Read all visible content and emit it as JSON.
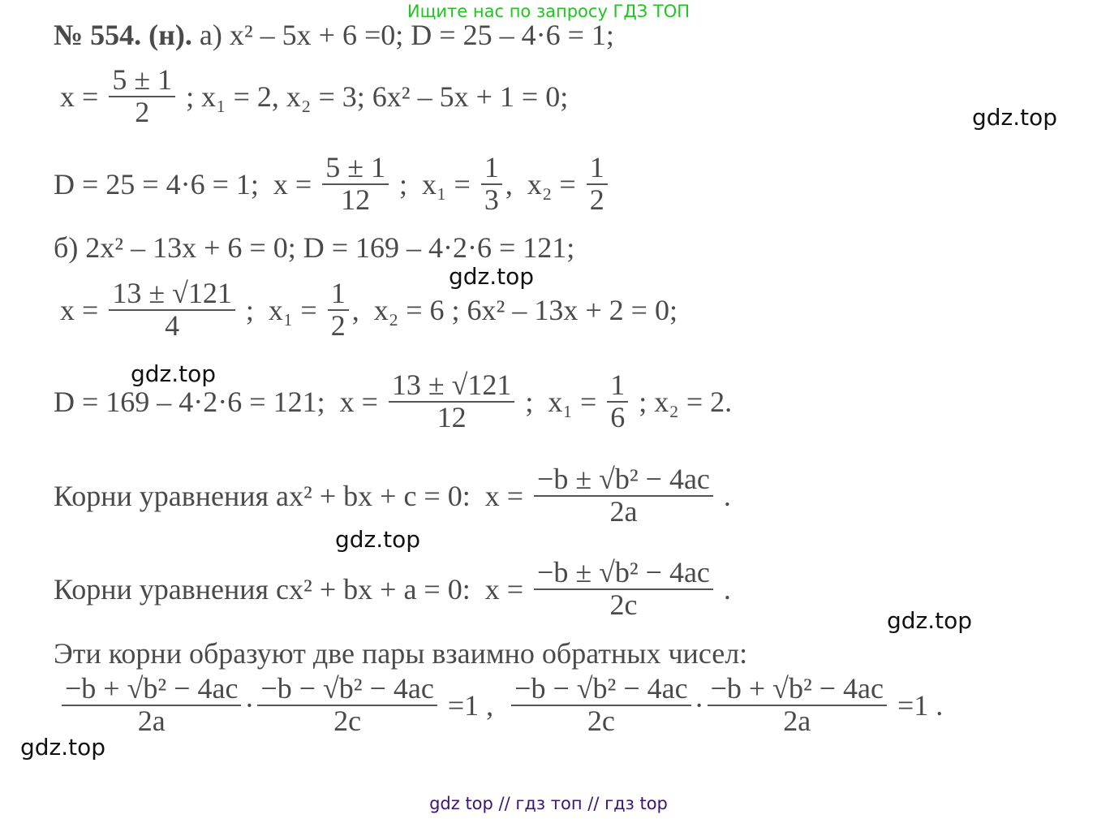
{
  "header": "Ищите нас по запросу ГДЗ ТОП",
  "footer": "gdz top  //  гдз топ  //  гдз top",
  "watermark": "gdz.top",
  "watermarks": [
    "gdz.top",
    "gdz.top",
    "gdz.top",
    "gdz.top",
    "gdz.top",
    "gdz.top"
  ],
  "lines": [
    [
      {
        "t": "№ 554. (н). "
      },
      {
        "t": "а) x² – 5x + 6 =0; D = 25 – 4·6 = 1;"
      }
    ],
    [
      {
        "t": "x = "
      },
      {
        "num": "5 ± 1",
        "den": "2"
      },
      {
        "t": " ; x₁ = 2, x₂ = 3; 6x² – 5x + 1 = 0;"
      }
    ],
    [
      {
        "t": "D = 25 = 4·6 = 1;  x = "
      },
      {
        "num": "5 ± 1",
        "den": "12"
      },
      {
        "t": " ;  x₁ = "
      },
      {
        "num": "1",
        "den": "3"
      },
      {
        "t": ",  x₂ = "
      },
      {
        "num": "1",
        "den": "2"
      }
    ],
    [
      {
        "t": "б) 2x² – 13x + 6 = 0; D = 169 – 4·2·6 = 121;"
      }
    ],
    [
      {
        "t": "x = "
      },
      {
        "num": "13 ± √121",
        "den": "4"
      },
      {
        "t": " ;  x₁ = "
      },
      {
        "num": "1",
        "den": "2"
      },
      {
        "t": ",  x₂ = 6 ; 6x² – 13x + 2 = 0;"
      }
    ],
    [
      {
        "t": "D = 169 – 4·2·6 = 121;  x = "
      },
      {
        "num": "13 ± √121",
        "den": "12"
      },
      {
        "t": " ;  x₁ = "
      },
      {
        "num": "1",
        "den": "6"
      },
      {
        "t": " ; x₂ = 2."
      }
    ],
    [
      {
        "t": "Корни уравнения ax² + bx + c = 0:  x = "
      },
      {
        "num": "−b ± √b² − 4ac",
        "den": "2a"
      },
      {
        "t": " ."
      }
    ],
    [
      {
        "t": "Корни уравнения cx² + bx + a = 0:  x = "
      },
      {
        "num": "−b ± √b² − 4ac",
        "den": "2c"
      },
      {
        "t": " ."
      }
    ],
    [
      {
        "t": "Эти корни образуют две пары взаимно обратных чисел:"
      }
    ],
    [
      {
        "num": "−b + √b² − 4ac",
        "den": "2a"
      },
      {
        "t": "·"
      },
      {
        "num": "−b − √b² − 4ac",
        "den": "2c"
      },
      {
        "t": " =1 ,  "
      },
      {
        "num": "−b − √b² − 4ac",
        "den": "2c"
      },
      {
        "t": "·"
      },
      {
        "num": "−b + √b² − 4ac",
        "den": "2a"
      },
      {
        "t": " =1 ."
      }
    ]
  ]
}
